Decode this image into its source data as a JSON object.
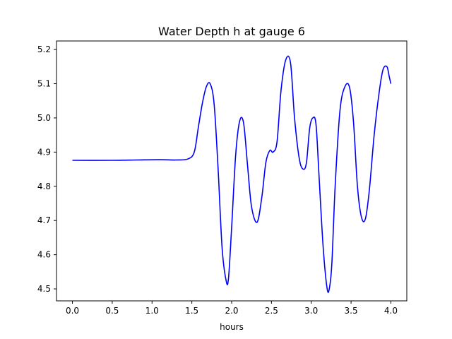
{
  "chart_data": {
    "type": "line",
    "title": "Water Depth h at gauge 6",
    "xlabel": "hours",
    "ylabel": "",
    "xlim": [
      -0.2,
      4.2
    ],
    "ylim": [
      4.465,
      5.225
    ],
    "xticks": [
      0.0,
      0.5,
      1.0,
      1.5,
      2.0,
      2.5,
      3.0,
      3.5,
      4.0
    ],
    "xtick_labels": [
      "0.0",
      "0.5",
      "1.0",
      "1.5",
      "2.0",
      "2.5",
      "3.0",
      "3.5",
      "4.0"
    ],
    "yticks": [
      4.5,
      4.6,
      4.7,
      4.8,
      4.9,
      5.0,
      5.1,
      5.2
    ],
    "ytick_labels": [
      "4.5",
      "4.6",
      "4.7",
      "4.8",
      "4.9",
      "5.0",
      "5.1",
      "5.2"
    ],
    "grid": false,
    "legend": "none",
    "series": [
      {
        "color": "#0000ff",
        "x": [
          0.0,
          0.5,
          0.8,
          1.1,
          1.3,
          1.45,
          1.53,
          1.58,
          1.63,
          1.68,
          1.73,
          1.78,
          1.83,
          1.88,
          1.93,
          1.96,
          2.0,
          2.05,
          2.1,
          2.15,
          2.2,
          2.25,
          2.32,
          2.38,
          2.43,
          2.48,
          2.52,
          2.57,
          2.62,
          2.68,
          2.74,
          2.79,
          2.85,
          2.9,
          2.94,
          2.98,
          3.02,
          3.06,
          3.1,
          3.15,
          3.2,
          3.23,
          3.26,
          3.3,
          3.36,
          3.42,
          3.48,
          3.53,
          3.58,
          3.63,
          3.68,
          3.73,
          3.79,
          3.85,
          3.9,
          3.95,
          3.98,
          4.0
        ],
        "y": [
          4.876,
          4.876,
          4.877,
          4.878,
          4.877,
          4.88,
          4.9,
          4.97,
          5.04,
          5.09,
          5.1,
          5.04,
          4.85,
          4.62,
          4.525,
          4.53,
          4.68,
          4.89,
          4.99,
          4.985,
          4.86,
          4.74,
          4.695,
          4.77,
          4.87,
          4.905,
          4.9,
          4.93,
          5.08,
          5.17,
          5.16,
          5.0,
          4.88,
          4.85,
          4.87,
          4.97,
          5.0,
          4.98,
          4.82,
          4.62,
          4.5,
          4.505,
          4.58,
          4.8,
          5.02,
          5.09,
          5.09,
          4.99,
          4.8,
          4.71,
          4.705,
          4.79,
          4.95,
          5.07,
          5.14,
          5.15,
          5.12,
          5.1
        ]
      }
    ]
  }
}
